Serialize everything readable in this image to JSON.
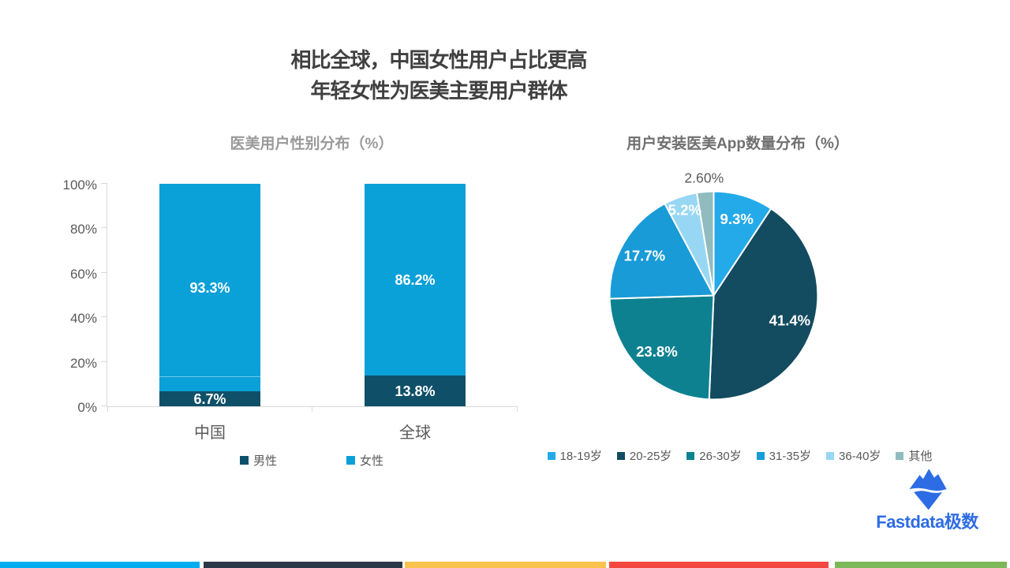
{
  "title": {
    "line1": "相比全球，中国女性用户占比更高",
    "line2": "年轻女性为医美主要用户群体"
  },
  "chart_data": [
    {
      "type": "bar",
      "subtype": "stacked-column-100",
      "title": "医美用户性别分布（%）",
      "categories": [
        "中国",
        "全球"
      ],
      "series": [
        {
          "name": "男性",
          "values": [
            6.7,
            13.8
          ],
          "color": "#0f5068"
        },
        {
          "name": "女性",
          "values": [
            93.3,
            86.2
          ],
          "color": "#0aa0d8"
        }
      ],
      "value_suffix": "%",
      "ylim": [
        0,
        100
      ],
      "yticks": [
        "0%",
        "20%",
        "40%",
        "60%",
        "80%",
        "100%"
      ],
      "grid": false,
      "legend_position": "bottom"
    },
    {
      "type": "pie",
      "title": "用户安装医美App数量分布（%）",
      "start_angle": "12-oclock",
      "direction": "clockwise",
      "slices": [
        {
          "label": "18-19岁",
          "value": 9.3,
          "display": "9.3%",
          "color": "#24aae9"
        },
        {
          "label": "20-25岁",
          "value": 41.4,
          "display": "41.4%",
          "color": "#134b60"
        },
        {
          "label": "26-30岁",
          "value": 23.8,
          "display": "23.8%",
          "color": "#0e8191"
        },
        {
          "label": "31-35岁",
          "value": 17.7,
          "display": "17.7%",
          "color": "#189bd7"
        },
        {
          "label": "36-40岁",
          "value": 5.2,
          "display": "5.2%",
          "color": "#98d7f3",
          "label_color": "#ffffff"
        },
        {
          "label": "其他",
          "value": 2.6,
          "display": "2.60%",
          "color": "#90bcc0",
          "label_outside": true
        }
      ],
      "legend_position": "bottom"
    }
  ],
  "logo": {
    "text": "Fastdata极数",
    "color": "#2e6ce5",
    "icon": "iceberg-icon"
  },
  "footer_stripes": [
    "#00aeef",
    "#2b3848",
    "#f9c34e",
    "#f3483f",
    "#7cb857"
  ]
}
